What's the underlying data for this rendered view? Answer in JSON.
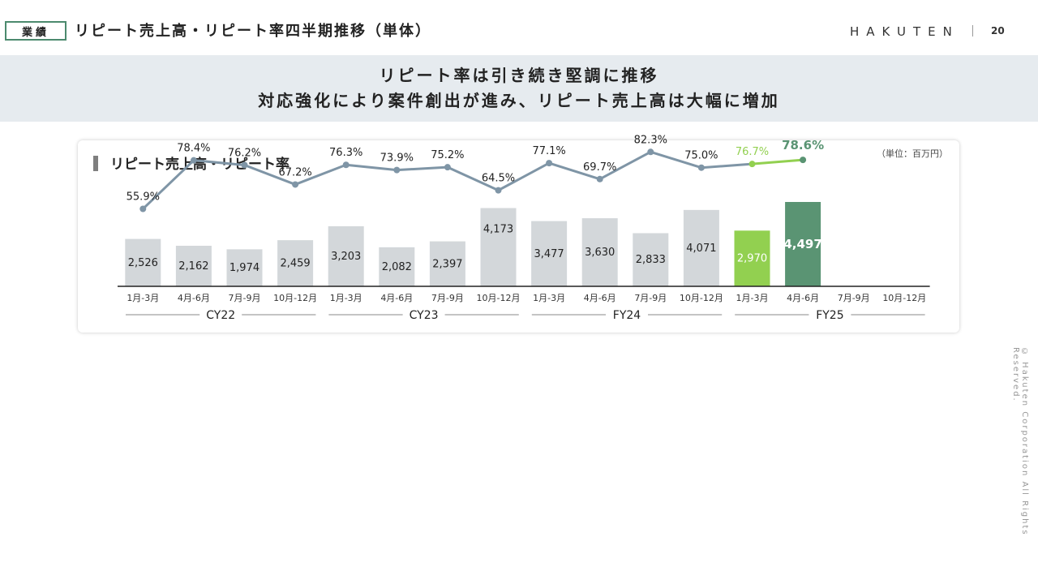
{
  "header": {
    "tag": "業績",
    "title": "リピート売上高・リピート率四半期推移（単体）",
    "logo": "HAKUTEN",
    "page_number": "20"
  },
  "banner": {
    "line1": "リピート率は引き続き堅調に推移",
    "line2": "対応強化により案件創出が進み、リピート売上高は大幅に増加"
  },
  "copyright": "© Hakuten Corporation All Rights Reserved.",
  "chart_data": {
    "type": "bar",
    "title": "リピート売上高・リピート率",
    "unit": "（単位：百万円）",
    "categories": [
      "1月-3月",
      "4月-6月",
      "7月-9月",
      "10月-12月",
      "1月-3月",
      "4月-6月",
      "7月-9月",
      "10月-12月",
      "1月-3月",
      "4月-6月",
      "7月-9月",
      "10月-12月",
      "1月-3月",
      "4月-6月",
      "7月-9月",
      "10月-12月"
    ],
    "groups": [
      {
        "label": "CY22",
        "start": 0,
        "end": 3
      },
      {
        "label": "CY23",
        "start": 4,
        "end": 7
      },
      {
        "label": "FY24",
        "start": 8,
        "end": 11
      },
      {
        "label": "FY25",
        "start": 12,
        "end": 15
      }
    ],
    "series": [
      {
        "type": "bar",
        "values": [
          2526,
          2162,
          1974,
          2459,
          3203,
          2082,
          2397,
          4173,
          3477,
          3630,
          2833,
          4071,
          2970,
          4497,
          null,
          null
        ],
        "labels": [
          "2,526",
          "2,162",
          "1,974",
          "2,459",
          "3,203",
          "2,082",
          "2,397",
          "4,173",
          "3,477",
          "3,630",
          "2,833",
          "4,071",
          "2,970",
          "4,497",
          "",
          ""
        ]
      },
      {
        "type": "line",
        "values": [
          55.9,
          78.4,
          76.2,
          67.2,
          76.3,
          73.9,
          75.2,
          64.5,
          77.1,
          69.7,
          82.3,
          75.0,
          76.7,
          78.6,
          null,
          null
        ],
        "labels": [
          "55.9%",
          "78.4%",
          "76.2%",
          "67.2%",
          "76.3%",
          "73.9%",
          "75.2%",
          "64.5%",
          "77.1%",
          "69.7%",
          "82.3%",
          "75.0%",
          "76.7%",
          "78.6%",
          "",
          ""
        ]
      }
    ],
    "colors": {
      "bar": "#d3d7da",
      "bar_fy25_q1": "#92d050",
      "bar_fy25_q2": "#5a9473",
      "line": "#7f95a6",
      "line_fy25_q1": "#92d050",
      "line_fy25_q2": "#5a9473",
      "axis": "#222222"
    }
  }
}
